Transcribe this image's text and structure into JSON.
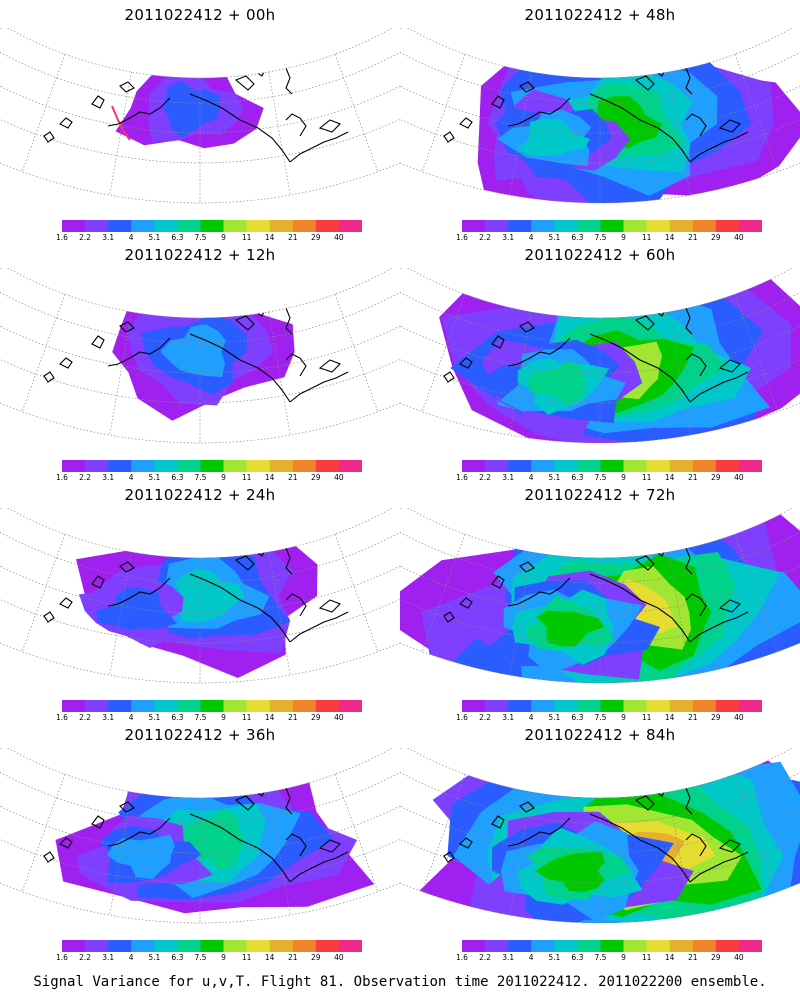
{
  "panels": [
    {
      "title": "2011022412 + 00h",
      "stage": 0
    },
    {
      "title": "2011022412 + 48h",
      "stage": 4
    },
    {
      "title": "2011022412 + 12h",
      "stage": 1
    },
    {
      "title": "2011022412 + 60h",
      "stage": 5
    },
    {
      "title": "2011022412 + 24h",
      "stage": 2
    },
    {
      "title": "2011022412 + 72h",
      "stage": 6
    },
    {
      "title": "2011022412 + 36h",
      "stage": 3
    },
    {
      "title": "2011022412 + 84h",
      "stage": 7
    }
  ],
  "colorbar": {
    "labels": [
      "1.6",
      "2.2",
      "3.1",
      "4",
      "5.1",
      "6.3",
      "7.5",
      "9",
      "11",
      "14",
      "21",
      "29",
      "40"
    ],
    "colors": [
      "#a020f0",
      "#7f3fff",
      "#2a5cff",
      "#1fa0ff",
      "#00c8c8",
      "#00d28c",
      "#00c800",
      "#a0e632",
      "#e6dc32",
      "#e6af2d",
      "#f08228",
      "#fa3c3c",
      "#f0288c"
    ]
  },
  "footer": "Signal Variance for u,v,T. Flight 81. Observation time 2011022412. 2011022200 ensemble."
}
